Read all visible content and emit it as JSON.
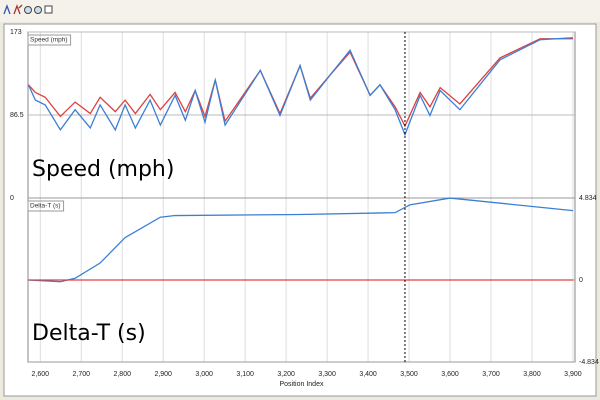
{
  "cursor_x": 3490,
  "chart_data": [
    {
      "type": "line",
      "channel_label": "Speed (mph)",
      "annotation": "Speed (mph)",
      "xlim": [
        2570,
        3905
      ],
      "xticks": [
        2600,
        2700,
        2800,
        2900,
        3000,
        3100,
        3200,
        3300,
        3400,
        3500,
        3600,
        3700,
        3800,
        3900
      ],
      "ylim": [
        0,
        173
      ],
      "yticks": [
        0,
        86.5,
        173
      ],
      "yaxis_side": "left",
      "grid": true,
      "x": [
        2571,
        2588,
        2612,
        2649,
        2685,
        2722,
        2746,
        2783,
        2807,
        2832,
        2868,
        2893,
        2929,
        2954,
        2978,
        3002,
        3027,
        3051,
        3137,
        3185,
        3234,
        3259,
        3307,
        3356,
        3405,
        3429,
        3466,
        3490,
        3527,
        3551,
        3576,
        3624,
        3722,
        3820,
        3900
      ],
      "series": [
        {
          "color": "#e04040",
          "values": [
            118,
            110,
            105,
            85,
            100,
            88,
            105,
            90,
            102,
            88,
            108,
            92,
            110,
            90,
            112,
            85,
            123,
            80,
            133,
            88,
            138,
            104,
            128,
            152,
            107,
            118,
            95,
            75,
            110,
            95,
            115,
            98,
            146,
            166,
            166
          ]
        },
        {
          "color": "#3a7fd5",
          "values": [
            118,
            102,
            97,
            71,
            92,
            73,
            97,
            71,
            97,
            73,
            102,
            76,
            107,
            81,
            112,
            79,
            123,
            76,
            133,
            86,
            138,
            102,
            128,
            154,
            107,
            118,
            92,
            66,
            107,
            86,
            112,
            92,
            144,
            165,
            167
          ]
        }
      ]
    },
    {
      "type": "line",
      "channel_label": "Delta-T (s)",
      "annotation": "Delta-T (s)",
      "xlabel": "Position Index",
      "xlim": [
        2570,
        3905
      ],
      "xticks": [
        {
          "value": 2600,
          "label": "2,600"
        },
        {
          "value": 2700,
          "label": "2,700"
        },
        {
          "value": 2800,
          "label": "2,800"
        },
        {
          "value": 2900,
          "label": "2,900"
        },
        {
          "value": 3000,
          "label": "3,000"
        },
        {
          "value": 3100,
          "label": "3,100"
        },
        {
          "value": 3200,
          "label": "3,200"
        },
        {
          "value": 3300,
          "label": "3,300"
        },
        {
          "value": 3400,
          "label": "3,400"
        },
        {
          "value": 3500,
          "label": "3,500"
        },
        {
          "value": 3600,
          "label": "3,600"
        },
        {
          "value": 3700,
          "label": "3,700"
        },
        {
          "value": 3800,
          "label": "3,800"
        },
        {
          "value": 3900,
          "label": "3,900"
        }
      ],
      "ylim": [
        -4.834,
        4.834
      ],
      "yticks": [
        -4.834,
        0,
        4.834
      ],
      "yaxis_side": "right",
      "grid": false,
      "x": [
        2571,
        2649,
        2685,
        2746,
        2807,
        2893,
        2929,
        3234,
        3466,
        3502,
        3600,
        3900
      ],
      "series": [
        {
          "color": "#3a7fd5",
          "values": [
            0,
            -0.1,
            0.1,
            1.0,
            2.5,
            3.7,
            3.8,
            3.86,
            3.97,
            4.43,
            4.83,
            4.09
          ]
        },
        {
          "color": "#e04040",
          "values": [
            0,
            0,
            0,
            0,
            0,
            0,
            0,
            0,
            0,
            0,
            0,
            0
          ]
        }
      ]
    }
  ]
}
